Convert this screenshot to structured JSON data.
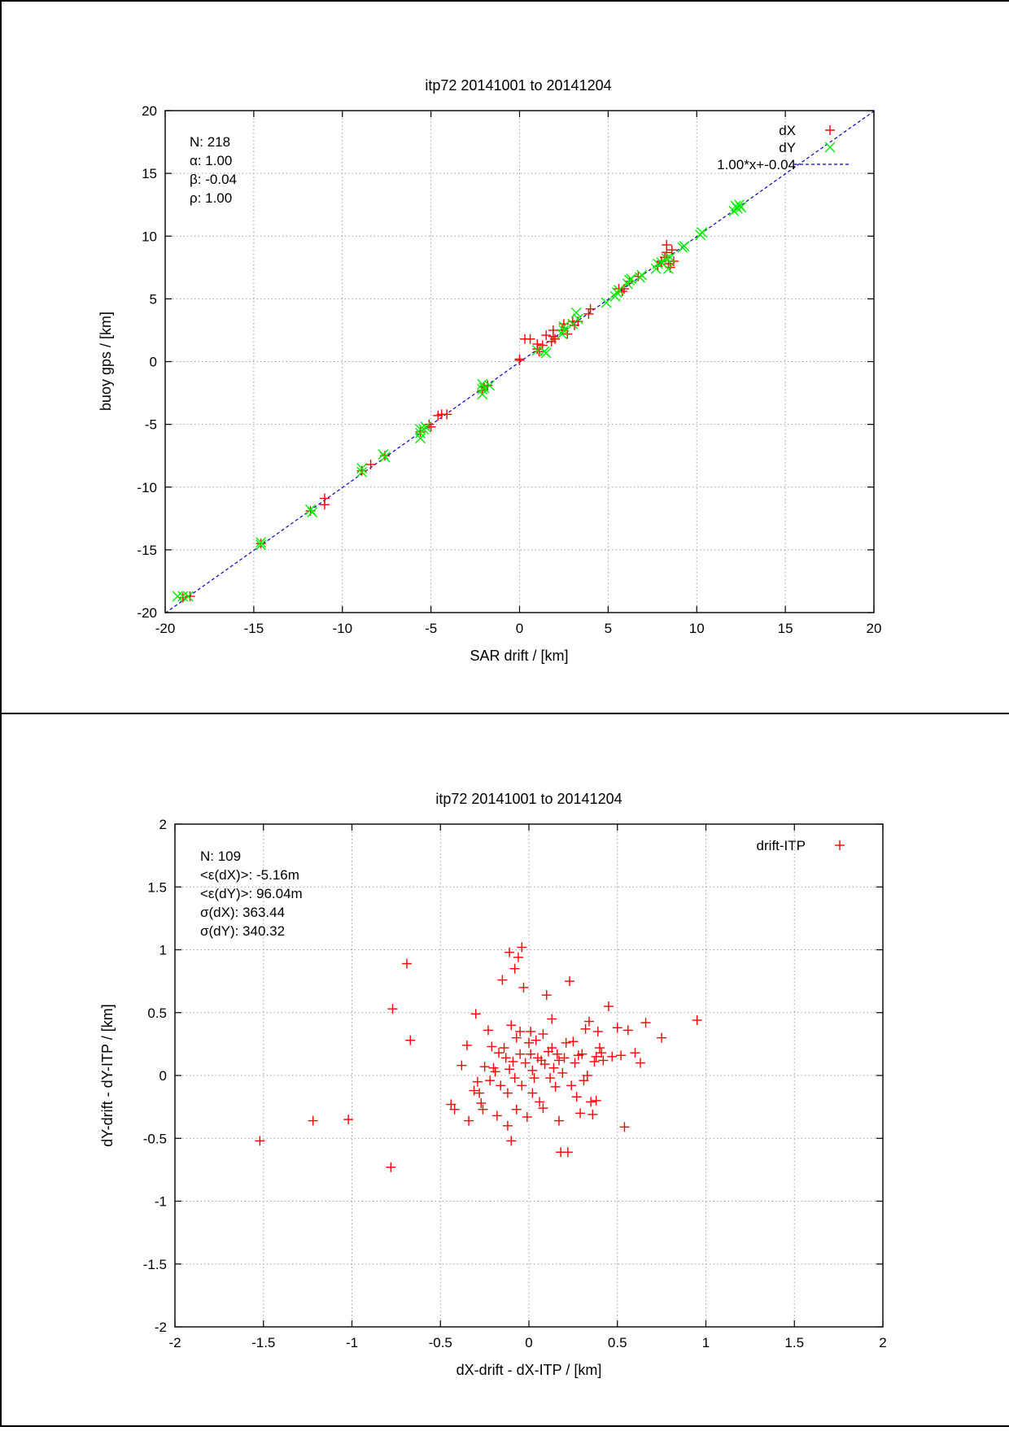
{
  "chart_data": [
    {
      "type": "scatter",
      "title": "itp72 20141001 to 20141204",
      "xlabel": "SAR drift / [km]",
      "ylabel": "buoy gps / [km]",
      "xlim": [
        -20,
        20
      ],
      "ylim": [
        -20,
        20
      ],
      "xticks": [
        -20,
        -15,
        -10,
        -5,
        0,
        5,
        10,
        15,
        20
      ],
      "yticks": [
        -20,
        -15,
        -10,
        -5,
        0,
        5,
        10,
        15,
        20
      ],
      "grid": true,
      "legend_position": "top-right",
      "stats": [
        "N: 218",
        "α: 1.00",
        "β: -0.04",
        "ρ: 1.00"
      ],
      "series": [
        {
          "name": "dX",
          "marker": "plus",
          "color": "#ff0000",
          "points": [
            [
              -19.0,
              -18.8
            ],
            [
              -18.6,
              -18.7
            ],
            [
              -14.6,
              -14.5
            ],
            [
              -11.8,
              -11.9
            ],
            [
              -11.0,
              -11.4
            ],
            [
              -11.0,
              -10.9
            ],
            [
              -8.9,
              -8.7
            ],
            [
              -8.4,
              -8.2
            ],
            [
              -7.6,
              -7.5
            ],
            [
              -5.6,
              -5.6
            ],
            [
              -5.1,
              -5.0
            ],
            [
              -5.0,
              -5.2
            ],
            [
              -4.6,
              -4.3
            ],
            [
              -4.4,
              -4.2
            ],
            [
              -4.1,
              -4.2
            ],
            [
              -2.1,
              -2.3
            ],
            [
              -2.0,
              -2.0
            ],
            [
              -1.8,
              -1.9
            ],
            [
              0.0,
              0.1
            ],
            [
              0.0,
              0.2
            ],
            [
              0.3,
              1.8
            ],
            [
              0.6,
              1.8
            ],
            [
              1.0,
              1.0
            ],
            [
              1.0,
              1.4
            ],
            [
              1.1,
              0.8
            ],
            [
              1.3,
              1.3
            ],
            [
              1.5,
              2.1
            ],
            [
              1.8,
              1.6
            ],
            [
              1.9,
              2.0
            ],
            [
              1.9,
              2.5
            ],
            [
              2.0,
              1.8
            ],
            [
              2.4,
              2.5
            ],
            [
              2.5,
              3.0
            ],
            [
              2.7,
              2.2
            ],
            [
              3.0,
              3.2
            ],
            [
              3.1,
              2.9
            ],
            [
              3.3,
              3.2
            ],
            [
              3.9,
              3.8
            ],
            [
              4.0,
              4.2
            ],
            [
              5.6,
              5.8
            ],
            [
              5.9,
              5.8
            ],
            [
              5.8,
              5.6
            ],
            [
              6.2,
              6.4
            ],
            [
              6.7,
              6.8
            ],
            [
              7.8,
              7.6
            ],
            [
              8.0,
              8.0
            ],
            [
              8.2,
              8.3
            ],
            [
              8.3,
              8.7
            ],
            [
              8.3,
              9.3
            ],
            [
              8.4,
              7.8
            ],
            [
              8.5,
              7.5
            ],
            [
              8.6,
              8.9
            ],
            [
              8.7,
              8.0
            ]
          ]
        },
        {
          "name": "dY",
          "marker": "cross",
          "color": "#00ee00",
          "points": [
            [
              -19.3,
              -18.7
            ],
            [
              -19.0,
              -18.7
            ],
            [
              -18.7,
              -18.7
            ],
            [
              -14.6,
              -14.4
            ],
            [
              -14.6,
              -14.6
            ],
            [
              -11.8,
              -11.8
            ],
            [
              -11.7,
              -12.0
            ],
            [
              -8.9,
              -8.5
            ],
            [
              -8.9,
              -8.8
            ],
            [
              -7.7,
              -7.4
            ],
            [
              -7.6,
              -7.6
            ],
            [
              -5.6,
              -5.4
            ],
            [
              -5.6,
              -5.7
            ],
            [
              -5.6,
              -6.1
            ],
            [
              -5.4,
              -5.4
            ],
            [
              -5.3,
              -5.2
            ],
            [
              -2.1,
              -1.8
            ],
            [
              -2.1,
              -2.2
            ],
            [
              -2.1,
              -2.6
            ],
            [
              -2.0,
              -2.1
            ],
            [
              -1.7,
              -1.9
            ],
            [
              1.0,
              0.9
            ],
            [
              1.4,
              0.8
            ],
            [
              1.5,
              0.7
            ],
            [
              2.4,
              2.2
            ],
            [
              2.5,
              2.8
            ],
            [
              2.5,
              2.5
            ],
            [
              3.0,
              3.0
            ],
            [
              3.2,
              3.9
            ],
            [
              3.3,
              3.4
            ],
            [
              4.9,
              4.7
            ],
            [
              5.4,
              5.2
            ],
            [
              5.5,
              5.5
            ],
            [
              5.6,
              5.7
            ],
            [
              6.1,
              6.2
            ],
            [
              6.2,
              6.5
            ],
            [
              6.3,
              6.6
            ],
            [
              6.8,
              6.7
            ],
            [
              6.9,
              6.9
            ],
            [
              7.7,
              7.4
            ],
            [
              7.8,
              7.8
            ],
            [
              8.0,
              7.9
            ],
            [
              8.3,
              8.2
            ],
            [
              8.4,
              7.4
            ],
            [
              8.5,
              8.3
            ],
            [
              9.2,
              9.1
            ],
            [
              9.3,
              9.2
            ],
            [
              10.2,
              10.1
            ],
            [
              10.3,
              10.3
            ],
            [
              12.1,
              12.0
            ],
            [
              12.2,
              12.4
            ],
            [
              12.3,
              12.2
            ],
            [
              12.4,
              12.5
            ],
            [
              12.5,
              12.3
            ]
          ]
        }
      ],
      "fit": {
        "name": "1.00*x+-0.04",
        "slope": 1.0,
        "intercept": -0.04,
        "color": "#0000cc"
      }
    },
    {
      "type": "scatter",
      "title": "itp72 20141001 to 20141204",
      "xlabel": "dX-drift - dX-ITP / [km]",
      "ylabel": "dY-drift - dY-ITP / [km]",
      "xlim": [
        -2,
        2
      ],
      "ylim": [
        -2,
        2
      ],
      "xticks": [
        -2,
        -1.5,
        -1,
        -0.5,
        0,
        0.5,
        1,
        1.5,
        2
      ],
      "yticks": [
        -2,
        -1.5,
        -1,
        -0.5,
        0,
        0.5,
        1,
        1.5,
        2
      ],
      "grid": true,
      "legend_position": "top-right",
      "stats": [
        "N: 109",
        "<ε(dX)>:  -5.16m",
        "<ε(dY)>: 96.04m",
        "σ(dX):  363.44",
        "σ(dY):  340.32"
      ],
      "series": [
        {
          "name": "drift-ITP",
          "marker": "plus",
          "color": "#ff0000",
          "points": [
            [
              -1.52,
              -0.52
            ],
            [
              -1.22,
              -0.36
            ],
            [
              -1.02,
              -0.35
            ],
            [
              -0.78,
              -0.73
            ],
            [
              -0.77,
              0.53
            ],
            [
              -0.69,
              0.89
            ],
            [
              -0.67,
              0.28
            ],
            [
              -0.44,
              -0.23
            ],
            [
              -0.42,
              -0.27
            ],
            [
              -0.38,
              0.08
            ],
            [
              -0.35,
              0.24
            ],
            [
              -0.31,
              -0.12
            ],
            [
              -0.3,
              0.49
            ],
            [
              -0.29,
              -0.05
            ],
            [
              -0.28,
              -0.14
            ],
            [
              -0.27,
              -0.22
            ],
            [
              -0.26,
              -0.27
            ],
            [
              -0.25,
              0.07
            ],
            [
              -0.23,
              0.36
            ],
            [
              -0.21,
              0.23
            ],
            [
              -0.19,
              0.03
            ],
            [
              -0.18,
              -0.32
            ],
            [
              -0.17,
              0.18
            ],
            [
              -0.16,
              -0.08
            ],
            [
              -0.15,
              0.76
            ],
            [
              -0.14,
              0.22
            ],
            [
              -0.13,
              0.14
            ],
            [
              -0.12,
              -0.4
            ],
            [
              -0.12,
              -0.14
            ],
            [
              -0.11,
              0.98
            ],
            [
              -0.11,
              0.05
            ],
            [
              -0.1,
              -0.52
            ],
            [
              -0.1,
              0.4
            ],
            [
              -0.09,
              0.11
            ],
            [
              -0.08,
              0.85
            ],
            [
              -0.08,
              -0.02
            ],
            [
              -0.07,
              0.3
            ],
            [
              -0.07,
              -0.27
            ],
            [
              -0.06,
              0.94
            ],
            [
              -0.05,
              0.17
            ],
            [
              -0.05,
              0.35
            ],
            [
              -0.04,
              -0.08
            ],
            [
              -0.04,
              1.02
            ],
            [
              -0.03,
              0.7
            ],
            [
              -0.02,
              0.1
            ],
            [
              -0.01,
              -0.33
            ],
            [
              0.0,
              0.26
            ],
            [
              0.01,
              0.35
            ],
            [
              0.01,
              0.17
            ],
            [
              0.02,
              0.04
            ],
            [
              0.03,
              -0.02
            ],
            [
              0.04,
              0.28
            ],
            [
              0.05,
              0.14
            ],
            [
              0.06,
              -0.21
            ],
            [
              0.07,
              0.12
            ],
            [
              0.08,
              -0.26
            ],
            [
              0.08,
              0.33
            ],
            [
              0.09,
              0.09
            ],
            [
              0.1,
              0.64
            ],
            [
              0.11,
              0.19
            ],
            [
              0.12,
              -0.02
            ],
            [
              0.13,
              0.22
            ],
            [
              0.14,
              0.06
            ],
            [
              0.15,
              -0.09
            ],
            [
              0.16,
              0.17
            ],
            [
              0.17,
              -0.36
            ],
            [
              0.17,
              0.12
            ],
            [
              0.18,
              -0.61
            ],
            [
              0.19,
              0.02
            ],
            [
              0.2,
              0.14
            ],
            [
              0.21,
              0.26
            ],
            [
              0.22,
              -0.61
            ],
            [
              0.23,
              0.75
            ],
            [
              0.24,
              -0.08
            ],
            [
              0.25,
              0.27
            ],
            [
              0.26,
              0.1
            ],
            [
              0.27,
              -0.17
            ],
            [
              0.28,
              0.16
            ],
            [
              0.29,
              -0.3
            ],
            [
              0.3,
              0.17
            ],
            [
              0.31,
              -0.04
            ],
            [
              0.32,
              0.37
            ],
            [
              0.33,
              0.0
            ],
            [
              0.34,
              0.43
            ],
            [
              0.35,
              -0.21
            ],
            [
              0.36,
              -0.31
            ],
            [
              0.37,
              0.11
            ],
            [
              0.38,
              -0.2
            ],
            [
              0.38,
              0.15
            ],
            [
              0.39,
              0.35
            ],
            [
              0.4,
              0.22
            ],
            [
              0.41,
              0.18
            ],
            [
              0.42,
              0.12
            ],
            [
              0.45,
              0.55
            ],
            [
              0.47,
              0.15
            ],
            [
              0.5,
              0.38
            ],
            [
              0.52,
              0.16
            ],
            [
              0.54,
              -0.41
            ],
            [
              0.56,
              0.36
            ],
            [
              0.6,
              0.18
            ],
            [
              0.63,
              0.1
            ],
            [
              0.66,
              0.42
            ],
            [
              0.75,
              0.3
            ],
            [
              0.95,
              0.44
            ],
            [
              -0.22,
              -0.04
            ],
            [
              0.13,
              0.45
            ],
            [
              -0.2,
              0.06
            ],
            [
              0.02,
              -0.14
            ],
            [
              -0.34,
              -0.36
            ]
          ]
        }
      ]
    }
  ]
}
